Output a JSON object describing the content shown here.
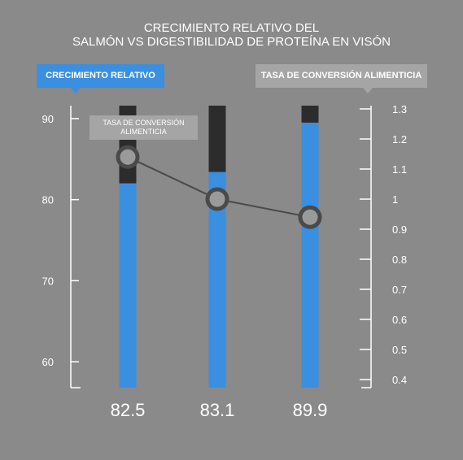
{
  "title": {
    "line1": "CRECIMIENTO RELATIVO DEL",
    "line2": "SALMÓN VS DIGESTIBILIDAD DE PROTEÍNA EN VISÓN"
  },
  "tooltip": {
    "line1": "TASA DE CONVERSIÓN",
    "line2": "ALIMENTICIA"
  },
  "colors": {
    "background": "#8a8a8b",
    "bar_blue": "#3a8fe0",
    "bar_dark": "#2c2c2c",
    "line": "#4a4a4a",
    "axis": "#ffffff",
    "legend_gray": "#a5a5a6"
  },
  "chart_data": {
    "type": "bar+line",
    "categories": [
      "82.5",
      "83.1",
      "89.9"
    ],
    "series": [
      {
        "name": "CRECIMIENTO RELATIVO",
        "type": "bar",
        "axis": "left",
        "values": [
          82,
          83.4,
          89.5
        ]
      },
      {
        "name": "TASA DE CONVERSIÓN ALIMENTICIA",
        "type": "line",
        "axis": "right",
        "values": [
          1.14,
          1.0,
          0.94
        ]
      }
    ],
    "bar_top_value": 91.6,
    "left_axis": {
      "min": 56.8,
      "max": 91.6,
      "ticks": [
        60,
        70,
        80,
        90
      ]
    },
    "right_axis": {
      "min": 0.4,
      "max": 1.3,
      "ticks": [
        1.3,
        1.2,
        1.1,
        1,
        0.9,
        0.8,
        0.7,
        0.6,
        0.5,
        0.4
      ]
    },
    "legend": [
      "CRECIMIENTO RELATIVO",
      "TASA DE CONVERSIÓN ALIMENTICIA"
    ],
    "legend_placement": "top"
  }
}
